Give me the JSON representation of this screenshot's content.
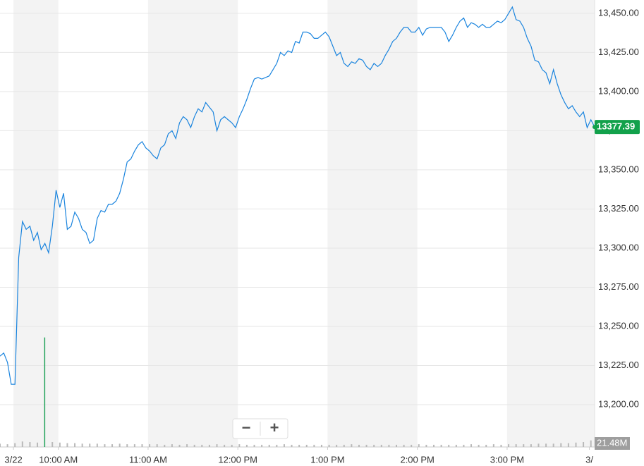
{
  "chart_data": {
    "type": "line",
    "color": "#1a84de",
    "x": [
      561,
      563.5,
      566,
      568.5,
      571,
      573.5,
      576,
      578.5,
      581,
      583.5,
      586,
      588.5,
      591,
      593.5,
      596,
      598.5,
      601,
      603.5,
      606,
      608.5,
      611,
      613.5,
      616,
      618.5,
      621,
      623.5,
      626,
      628.5,
      631,
      633.5,
      636,
      638.5,
      641,
      643.5,
      646,
      648.5,
      651,
      653.5,
      656,
      658.5,
      661,
      663.5,
      666,
      668.5,
      671,
      673.5,
      676,
      678.5,
      681,
      683.5,
      686,
      688.5,
      691,
      693.5,
      696,
      698.5,
      701,
      703.5,
      706,
      708.5,
      711,
      713.5,
      716,
      718.5,
      721,
      723.5,
      726,
      728.5,
      731,
      733.5,
      736,
      738.5,
      741,
      743.5,
      746,
      748.5,
      751,
      753.5,
      756,
      758.5,
      761,
      763.5,
      766,
      768.5,
      771,
      773.5,
      776,
      778.5,
      781,
      783.5,
      786,
      788.5,
      791,
      793.5,
      796,
      798.5,
      801,
      803.5,
      806,
      808.5,
      811,
      813.5,
      816,
      818.5,
      821,
      823.5,
      826,
      828.5,
      831,
      833.5,
      836,
      838.5,
      841,
      843.5,
      846,
      848.5,
      851,
      853.5,
      856,
      858.5,
      861,
      863.5,
      866,
      868.5,
      871,
      873.5,
      876,
      878.5,
      881,
      883.5,
      886,
      888.5,
      891,
      893.5,
      896,
      898.5,
      901,
      903.5,
      906,
      908.5,
      911,
      913.5,
      916,
      918.5,
      921,
      923.5,
      926,
      928.5,
      931,
      933.5,
      936,
      938.5,
      941,
      943.5,
      946,
      948.5,
      951,
      953.5,
      956,
      958.5
    ],
    "values": [
      13231,
      13233,
      13227,
      13213,
      13213,
      13294,
      13317,
      13312,
      13314,
      13305,
      13310,
      13299,
      13303,
      13297,
      13314,
      13337,
      13326,
      13335,
      13312,
      13314,
      13323,
      13319,
      13312,
      13310,
      13303,
      13305,
      13319,
      13324,
      13323,
      13328,
      13328,
      13330,
      13335,
      13344,
      13355,
      13357,
      13362,
      13366,
      13368,
      13364,
      13362,
      13359,
      13357,
      13364,
      13366,
      13373,
      13375,
      13370,
      13380,
      13384,
      13382,
      13377,
      13384,
      13389,
      13387,
      13393,
      13390,
      13387,
      13375,
      13382,
      13384,
      13382,
      13380,
      13377,
      13384,
      13389,
      13395,
      13402,
      13408,
      13409,
      13408,
      13409,
      13410,
      13414,
      13418,
      13425,
      13423,
      13426,
      13425,
      13432,
      13431,
      13438,
      13438,
      13437,
      13434,
      13434,
      13436,
      13438,
      13435,
      13429,
      13423,
      13425,
      13418,
      13416,
      13419,
      13418,
      13421,
      13420,
      13416,
      13414,
      13418,
      13416,
      13418,
      13423,
      13427,
      13432,
      13434,
      13438,
      13441,
      13441,
      13438,
      13438,
      13441,
      13436,
      13440,
      13441,
      13441,
      13441,
      13441,
      13438,
      13432,
      13436,
      13441,
      13445,
      13447,
      13441,
      13444,
      13443,
      13441,
      13443,
      13441,
      13441,
      13443,
      13445,
      13444,
      13446,
      13450,
      13454,
      13446,
      13445,
      13441,
      13434,
      13429,
      13420,
      13419,
      13414,
      13412,
      13405,
      13414,
      13405,
      13398,
      13393,
      13389,
      13391,
      13387,
      13384,
      13387,
      13377,
      13382,
      13377.39
    ],
    "xlim": [
      561,
      958.5
    ],
    "ylim": [
      13175,
      13458.5
    ],
    "xticks": [
      {
        "value": 570,
        "label": "3/22"
      },
      {
        "value": 600,
        "label": "10:00 AM"
      },
      {
        "value": 660,
        "label": "11:00 AM"
      },
      {
        "value": 720,
        "label": "12:00 PM"
      },
      {
        "value": 780,
        "label": "1:00 PM"
      },
      {
        "value": 840,
        "label": "2:00 PM"
      },
      {
        "value": 900,
        "label": "3:00 PM"
      },
      {
        "value": 955,
        "label": "3/"
      }
    ],
    "yticks": [
      {
        "value": 13200,
        "label": "13,200.00"
      },
      {
        "value": 13225,
        "label": "13,225.00"
      },
      {
        "value": 13250,
        "label": "13,250.00"
      },
      {
        "value": 13275,
        "label": "13,275.00"
      },
      {
        "value": 13300,
        "label": "13,300.00"
      },
      {
        "value": 13325,
        "label": "13,325.00"
      },
      {
        "value": 13350,
        "label": "13,350.00"
      },
      {
        "value": 13375,
        "label": "13,375.00"
      },
      {
        "value": 13400,
        "label": "13,400.00"
      },
      {
        "value": 13425,
        "label": "13,425.00"
      },
      {
        "value": 13450,
        "label": "13,450.00"
      }
    ],
    "grid": true,
    "last_price": 13377.39,
    "last_price_color": "#12a14b",
    "volume": {
      "color": "#b9b9b9",
      "highlight_color": "#21a35a",
      "ylim": [
        0,
        20.6
      ],
      "label": "21.48M",
      "x": [
        561,
        566,
        571,
        576,
        581,
        586,
        591,
        596,
        601,
        606,
        611,
        616,
        621,
        626,
        631,
        636,
        641,
        646,
        651,
        656,
        661,
        666,
        671,
        676,
        681,
        686,
        691,
        696,
        701,
        706,
        711,
        716,
        721,
        726,
        731,
        736,
        741,
        746,
        751,
        756,
        761,
        766,
        771,
        776,
        781,
        786,
        791,
        796,
        801,
        806,
        811,
        816,
        821,
        826,
        831,
        836,
        841,
        846,
        851,
        856,
        861,
        866,
        871,
        876,
        881,
        886,
        891,
        896,
        901,
        906,
        911,
        916,
        921,
        926,
        931,
        936,
        941,
        946,
        951,
        956
      ],
      "values": [
        0.6,
        0.5,
        0.7,
        1.0,
        0.9,
        0.8,
        20,
        0.9,
        0.8,
        0.7,
        0.7,
        0.6,
        0.6,
        0.6,
        0.5,
        0.5,
        0.6,
        0.5,
        0.5,
        0.5,
        0.5,
        0.5,
        0.4,
        0.5,
        0.4,
        0.5,
        0.4,
        0.4,
        0.4,
        0.5,
        0.4,
        0.4,
        0.5,
        0.4,
        0.4,
        0.4,
        0.4,
        0.4,
        0.5,
        0.4,
        0.4,
        0.4,
        0.4,
        0.4,
        0.4,
        0.4,
        0.4,
        0.5,
        0.4,
        0.4,
        0.4,
        0.4,
        0.4,
        0.4,
        0.4,
        0.4,
        0.5,
        0.4,
        0.4,
        0.4,
        0.4,
        0.4,
        0.4,
        0.5,
        0.4,
        0.4,
        0.5,
        0.4,
        0.5,
        0.5,
        0.5,
        0.5,
        0.6,
        0.6,
        0.6,
        0.7,
        0.7,
        0.8,
        0.9,
        1.2
      ]
    },
    "zoom_controls": [
      "−",
      "+"
    ]
  }
}
